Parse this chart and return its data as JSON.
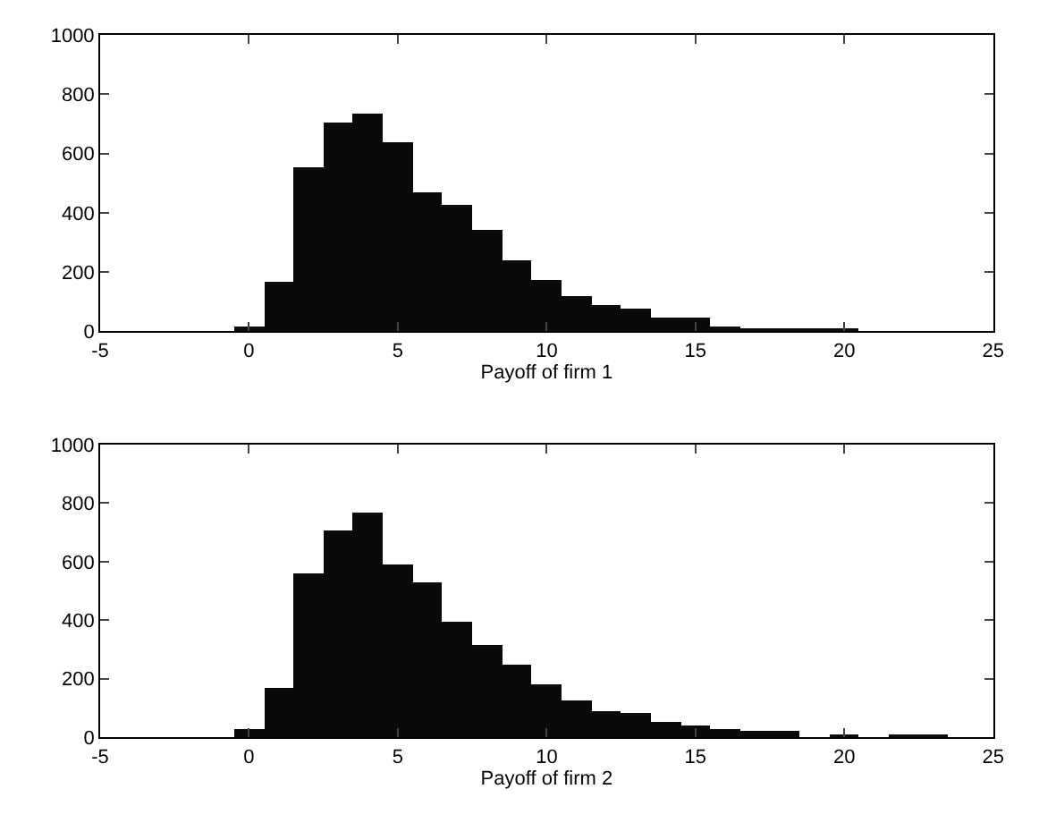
{
  "chart_data": [
    {
      "type": "histogram",
      "xlabel": "Payoff of firm 1",
      "color": "#0a0a0a",
      "bins": [
        -4.5,
        -3.5,
        -2.5,
        -1.5,
        -0.5,
        0.5,
        1.5,
        2.5,
        3.5,
        4.5,
        5.5,
        6.5,
        7.5,
        8.5,
        9.5,
        10.5,
        11.5,
        12.5,
        13.5,
        14.5,
        15.5,
        16.5,
        17.5,
        18.5,
        19.5,
        20.5,
        21.5,
        22.5,
        23.5,
        24.5
      ],
      "values": [
        0,
        0,
        0,
        0,
        16,
        164,
        555,
        707,
        737,
        636,
        470,
        429,
        340,
        239,
        174,
        117,
        91,
        73,
        43,
        43,
        14,
        8,
        8,
        4,
        4,
        null,
        null,
        null,
        null
      ],
      "xlim": [
        -5,
        25
      ],
      "ylim": [
        0,
        1000
      ],
      "xticks": [
        -5,
        0,
        5,
        10,
        15,
        20,
        25
      ],
      "yticks": [
        0,
        200,
        400,
        600,
        800,
        1000
      ],
      "grid": false
    },
    {
      "type": "histogram",
      "xlabel": "Payoff of firm 2",
      "color": "#0a0a0a",
      "bins": [
        -4.5,
        -3.5,
        -2.5,
        -1.5,
        -0.5,
        0.5,
        1.5,
        2.5,
        3.5,
        4.5,
        5.5,
        6.5,
        7.5,
        8.5,
        9.5,
        10.5,
        11.5,
        12.5,
        13.5,
        14.5,
        15.5,
        16.5,
        17.5,
        18.5,
        19.5,
        20.5,
        21.5,
        22.5,
        23.5,
        24.5
      ],
      "values": [
        0,
        0,
        0,
        0,
        28,
        170,
        561,
        709,
        769,
        591,
        530,
        395,
        318,
        247,
        180,
        123,
        87,
        81,
        51,
        43,
        28,
        20,
        20,
        0,
        8,
        0,
        8,
        8,
        0
      ],
      "xlim": [
        -5,
        25
      ],
      "ylim": [
        0,
        1000
      ],
      "xticks": [
        -5,
        0,
        5,
        10,
        15,
        20,
        25
      ],
      "yticks": [
        0,
        200,
        400,
        600,
        800,
        1000
      ],
      "grid": false
    }
  ]
}
